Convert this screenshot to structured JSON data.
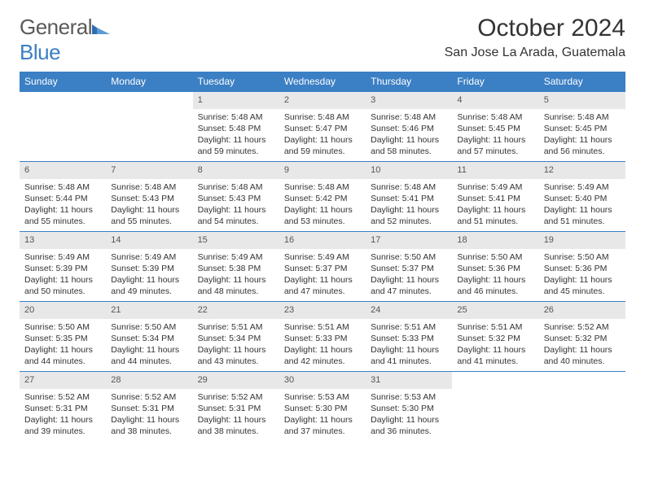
{
  "logo": {
    "text_general": "General",
    "text_blue": "Blue"
  },
  "title": "October 2024",
  "location": "San Jose La Arada, Guatemala",
  "colors": {
    "header_bg": "#3b7fc4",
    "header_text": "#ffffff",
    "daynum_bg": "#e8e8e8",
    "border": "#3b7fc4",
    "body_text": "#333333"
  },
  "daynames": [
    "Sunday",
    "Monday",
    "Tuesday",
    "Wednesday",
    "Thursday",
    "Friday",
    "Saturday"
  ],
  "weeks": [
    [
      {
        "empty": true
      },
      {
        "empty": true
      },
      {
        "day": "1",
        "sunrise": "Sunrise: 5:48 AM",
        "sunset": "Sunset: 5:48 PM",
        "daylight": "Daylight: 11 hours and 59 minutes."
      },
      {
        "day": "2",
        "sunrise": "Sunrise: 5:48 AM",
        "sunset": "Sunset: 5:47 PM",
        "daylight": "Daylight: 11 hours and 59 minutes."
      },
      {
        "day": "3",
        "sunrise": "Sunrise: 5:48 AM",
        "sunset": "Sunset: 5:46 PM",
        "daylight": "Daylight: 11 hours and 58 minutes."
      },
      {
        "day": "4",
        "sunrise": "Sunrise: 5:48 AM",
        "sunset": "Sunset: 5:45 PM",
        "daylight": "Daylight: 11 hours and 57 minutes."
      },
      {
        "day": "5",
        "sunrise": "Sunrise: 5:48 AM",
        "sunset": "Sunset: 5:45 PM",
        "daylight": "Daylight: 11 hours and 56 minutes."
      }
    ],
    [
      {
        "day": "6",
        "sunrise": "Sunrise: 5:48 AM",
        "sunset": "Sunset: 5:44 PM",
        "daylight": "Daylight: 11 hours and 55 minutes."
      },
      {
        "day": "7",
        "sunrise": "Sunrise: 5:48 AM",
        "sunset": "Sunset: 5:43 PM",
        "daylight": "Daylight: 11 hours and 55 minutes."
      },
      {
        "day": "8",
        "sunrise": "Sunrise: 5:48 AM",
        "sunset": "Sunset: 5:43 PM",
        "daylight": "Daylight: 11 hours and 54 minutes."
      },
      {
        "day": "9",
        "sunrise": "Sunrise: 5:48 AM",
        "sunset": "Sunset: 5:42 PM",
        "daylight": "Daylight: 11 hours and 53 minutes."
      },
      {
        "day": "10",
        "sunrise": "Sunrise: 5:48 AM",
        "sunset": "Sunset: 5:41 PM",
        "daylight": "Daylight: 11 hours and 52 minutes."
      },
      {
        "day": "11",
        "sunrise": "Sunrise: 5:49 AM",
        "sunset": "Sunset: 5:41 PM",
        "daylight": "Daylight: 11 hours and 51 minutes."
      },
      {
        "day": "12",
        "sunrise": "Sunrise: 5:49 AM",
        "sunset": "Sunset: 5:40 PM",
        "daylight": "Daylight: 11 hours and 51 minutes."
      }
    ],
    [
      {
        "day": "13",
        "sunrise": "Sunrise: 5:49 AM",
        "sunset": "Sunset: 5:39 PM",
        "daylight": "Daylight: 11 hours and 50 minutes."
      },
      {
        "day": "14",
        "sunrise": "Sunrise: 5:49 AM",
        "sunset": "Sunset: 5:39 PM",
        "daylight": "Daylight: 11 hours and 49 minutes."
      },
      {
        "day": "15",
        "sunrise": "Sunrise: 5:49 AM",
        "sunset": "Sunset: 5:38 PM",
        "daylight": "Daylight: 11 hours and 48 minutes."
      },
      {
        "day": "16",
        "sunrise": "Sunrise: 5:49 AM",
        "sunset": "Sunset: 5:37 PM",
        "daylight": "Daylight: 11 hours and 47 minutes."
      },
      {
        "day": "17",
        "sunrise": "Sunrise: 5:50 AM",
        "sunset": "Sunset: 5:37 PM",
        "daylight": "Daylight: 11 hours and 47 minutes."
      },
      {
        "day": "18",
        "sunrise": "Sunrise: 5:50 AM",
        "sunset": "Sunset: 5:36 PM",
        "daylight": "Daylight: 11 hours and 46 minutes."
      },
      {
        "day": "19",
        "sunrise": "Sunrise: 5:50 AM",
        "sunset": "Sunset: 5:36 PM",
        "daylight": "Daylight: 11 hours and 45 minutes."
      }
    ],
    [
      {
        "day": "20",
        "sunrise": "Sunrise: 5:50 AM",
        "sunset": "Sunset: 5:35 PM",
        "daylight": "Daylight: 11 hours and 44 minutes."
      },
      {
        "day": "21",
        "sunrise": "Sunrise: 5:50 AM",
        "sunset": "Sunset: 5:34 PM",
        "daylight": "Daylight: 11 hours and 44 minutes."
      },
      {
        "day": "22",
        "sunrise": "Sunrise: 5:51 AM",
        "sunset": "Sunset: 5:34 PM",
        "daylight": "Daylight: 11 hours and 43 minutes."
      },
      {
        "day": "23",
        "sunrise": "Sunrise: 5:51 AM",
        "sunset": "Sunset: 5:33 PM",
        "daylight": "Daylight: 11 hours and 42 minutes."
      },
      {
        "day": "24",
        "sunrise": "Sunrise: 5:51 AM",
        "sunset": "Sunset: 5:33 PM",
        "daylight": "Daylight: 11 hours and 41 minutes."
      },
      {
        "day": "25",
        "sunrise": "Sunrise: 5:51 AM",
        "sunset": "Sunset: 5:32 PM",
        "daylight": "Daylight: 11 hours and 41 minutes."
      },
      {
        "day": "26",
        "sunrise": "Sunrise: 5:52 AM",
        "sunset": "Sunset: 5:32 PM",
        "daylight": "Daylight: 11 hours and 40 minutes."
      }
    ],
    [
      {
        "day": "27",
        "sunrise": "Sunrise: 5:52 AM",
        "sunset": "Sunset: 5:31 PM",
        "daylight": "Daylight: 11 hours and 39 minutes."
      },
      {
        "day": "28",
        "sunrise": "Sunrise: 5:52 AM",
        "sunset": "Sunset: 5:31 PM",
        "daylight": "Daylight: 11 hours and 38 minutes."
      },
      {
        "day": "29",
        "sunrise": "Sunrise: 5:52 AM",
        "sunset": "Sunset: 5:31 PM",
        "daylight": "Daylight: 11 hours and 38 minutes."
      },
      {
        "day": "30",
        "sunrise": "Sunrise: 5:53 AM",
        "sunset": "Sunset: 5:30 PM",
        "daylight": "Daylight: 11 hours and 37 minutes."
      },
      {
        "day": "31",
        "sunrise": "Sunrise: 5:53 AM",
        "sunset": "Sunset: 5:30 PM",
        "daylight": "Daylight: 11 hours and 36 minutes."
      },
      {
        "empty": true
      },
      {
        "empty": true
      }
    ]
  ]
}
